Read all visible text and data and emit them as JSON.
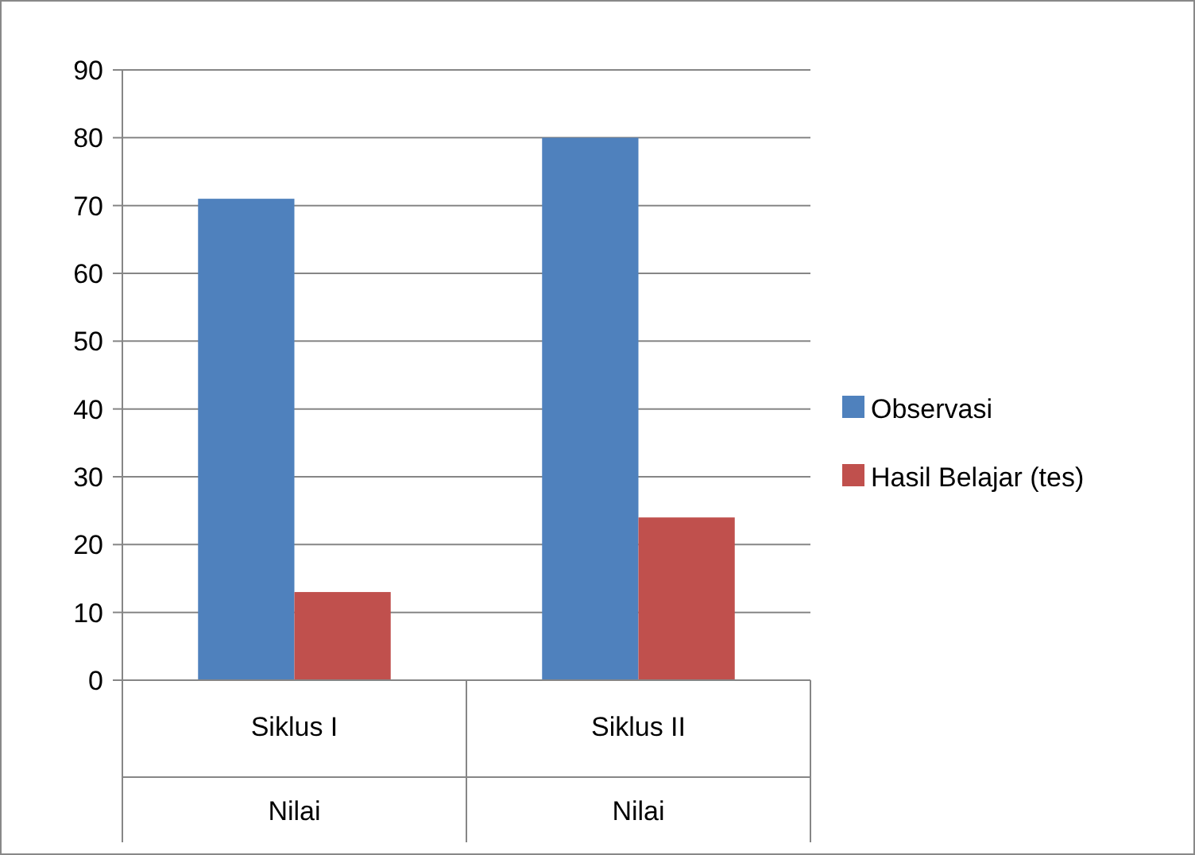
{
  "chart_data": {
    "type": "bar",
    "categories": [
      "Siklus I",
      "Siklus II"
    ],
    "series": [
      {
        "name": "Observasi",
        "color": "#4f81bd",
        "values": [
          71,
          80
        ]
      },
      {
        "name": "Hasil Belajar (tes)",
        "color": "#c0504d",
        "values": [
          13,
          24
        ]
      }
    ],
    "annotations": [
      "Nilai",
      "Nilai"
    ],
    "ylim": [
      0,
      90
    ],
    "yticks": [
      0,
      10,
      20,
      30,
      40,
      50,
      60,
      70,
      80,
      90
    ],
    "grid": "y",
    "legend": "right"
  }
}
